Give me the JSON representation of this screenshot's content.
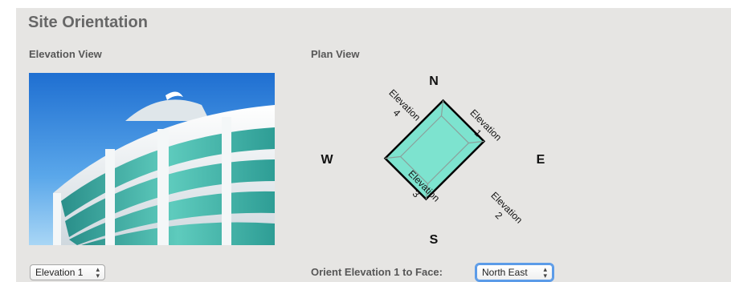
{
  "panel": {
    "title": "Site Orientation",
    "elevation_view_label": "Elevation View",
    "plan_view_label": "Plan View"
  },
  "plan": {
    "north": "N",
    "south": "S",
    "east": "E",
    "west": "W",
    "elevations": [
      {
        "word": "Elevation",
        "num": "1"
      },
      {
        "word": "Elevation",
        "num": "2"
      },
      {
        "word": "Elevation",
        "num": "3"
      },
      {
        "word": "Elevation",
        "num": "4"
      }
    ],
    "building_fill": "#7de3cf"
  },
  "controls": {
    "elevation_select_value": "Elevation 1",
    "orient_label": "Orient Elevation 1 to Face:",
    "orient_select_value": "North East"
  },
  "colors": {
    "panel_bg": "#e6e5e3",
    "focus_ring": "#5b9be8"
  }
}
